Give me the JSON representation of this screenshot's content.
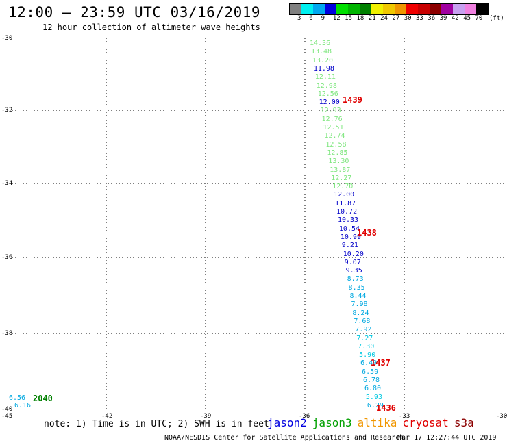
{
  "header": {
    "title": "12:00 – 23:59 UTC 03/16/2019",
    "subtitle": "12 hour collection of altimeter wave heights"
  },
  "legend": {
    "labels": [
      "3",
      "6",
      "9",
      "12",
      "15",
      "18",
      "21",
      "24",
      "27",
      "30",
      "33",
      "36",
      "39",
      "42",
      "45",
      "70",
      "(ft)"
    ],
    "colors": [
      "#808080",
      "#00f0f0",
      "#00a8f0",
      "#0000e0",
      "#00e000",
      "#00b400",
      "#008000",
      "#f0f000",
      "#f0c800",
      "#f09600",
      "#f00000",
      "#c80000",
      "#8c0000",
      "#a000a0",
      "#c8a0f0",
      "#f080e0",
      "#000000"
    ]
  },
  "axes": {
    "y_labels": [
      "-30",
      "-32",
      "-34",
      "-36",
      "-38",
      "-40"
    ],
    "x_labels": [
      "-45",
      "-42",
      "-39",
      "-36",
      "-33",
      "-30"
    ]
  },
  "wave_heights": [
    {
      "text": "14.36",
      "color": "#7ee67e"
    },
    {
      "text": "13.48",
      "color": "#7ee67e"
    },
    {
      "text": "13.20",
      "color": "#7ee67e"
    },
    {
      "text": "11.98",
      "color": "#0000c8"
    },
    {
      "text": "12.11",
      "color": "#7ee67e"
    },
    {
      "text": "12.98",
      "color": "#7ee67e"
    },
    {
      "text": "12.56",
      "color": "#7ee67e"
    },
    {
      "text": "12.00",
      "color": "#0000c8"
    },
    {
      "text": "12.93",
      "color": "#7ee67e"
    },
    {
      "text": "12.76",
      "color": "#7ee67e"
    },
    {
      "text": "12.51",
      "color": "#7ee67e"
    },
    {
      "text": "12.74",
      "color": "#7ee67e"
    },
    {
      "text": "12.58",
      "color": "#7ee67e"
    },
    {
      "text": "12.85",
      "color": "#7ee67e"
    },
    {
      "text": "13.30",
      "color": "#7ee67e"
    },
    {
      "text": "13.87",
      "color": "#7ee67e"
    },
    {
      "text": "12.27",
      "color": "#7ee67e"
    },
    {
      "text": "12.70",
      "color": "#7ee67e"
    },
    {
      "text": "12.00",
      "color": "#0000c8"
    },
    {
      "text": "11.87",
      "color": "#0000c8"
    },
    {
      "text": "10.72",
      "color": "#0000c8"
    },
    {
      "text": "10.33",
      "color": "#0000c8"
    },
    {
      "text": "10.54",
      "color": "#0000c8"
    },
    {
      "text": "10.99",
      "color": "#0000c8"
    },
    {
      "text": "9.21",
      "color": "#0000c8"
    },
    {
      "text": "10.20",
      "color": "#0000c8"
    },
    {
      "text": "9.07",
      "color": "#0000c8"
    },
    {
      "text": "9.35",
      "color": "#0000c8"
    },
    {
      "text": "8.73",
      "color": "#00a8e0"
    },
    {
      "text": "8.35",
      "color": "#00a8e0"
    },
    {
      "text": "8.44",
      "color": "#00a8e0"
    },
    {
      "text": "7.98",
      "color": "#00a8e0"
    },
    {
      "text": "8.24",
      "color": "#00a8e0"
    },
    {
      "text": "7.68",
      "color": "#00a8e0"
    },
    {
      "text": "7.92",
      "color": "#00a8e0"
    },
    {
      "text": "7.27",
      "color": "#00c8e0"
    },
    {
      "text": "7.30",
      "color": "#00c8e0"
    },
    {
      "text": "5.90",
      "color": "#00c8e0"
    },
    {
      "text": "6.49",
      "color": "#00a8e0"
    },
    {
      "text": "6.59",
      "color": "#00a8e0"
    },
    {
      "text": "6.78",
      "color": "#00a8e0"
    },
    {
      "text": "6.80",
      "color": "#00a8e0"
    },
    {
      "text": "5.93",
      "color": "#00c8e0"
    },
    {
      "text": "6.29",
      "color": "#00a8e0"
    }
  ],
  "west_values": [
    {
      "text": "6.56",
      "color": "#00a8e0"
    },
    {
      "text": "6.16",
      "color": "#00a8e0"
    }
  ],
  "time_labels": [
    {
      "text": "1439",
      "color": "#e00000"
    },
    {
      "text": "1438",
      "color": "#e00000"
    },
    {
      "text": "1437",
      "color": "#e00000"
    },
    {
      "text": "1436",
      "color": "#e00000"
    },
    {
      "text": "2040",
      "color": "#008000"
    }
  ],
  "footer": {
    "note": "note: 1) Time is in UTC; 2) SWH is in feet",
    "missions": [
      {
        "name": "jason2",
        "color": "#0000e0"
      },
      {
        "name": "jason3",
        "color": "#00a000"
      },
      {
        "name": "altika",
        "color": "#f09600"
      },
      {
        "name": "cryosat",
        "color": "#e00000"
      },
      {
        "name": "s3a",
        "color": "#8c0000"
      }
    ],
    "credits": "NOAA/NESDIS Center for Satellite Applications and Research",
    "timestamp": "Mar 17 12:27:44 UTC 2019"
  }
}
